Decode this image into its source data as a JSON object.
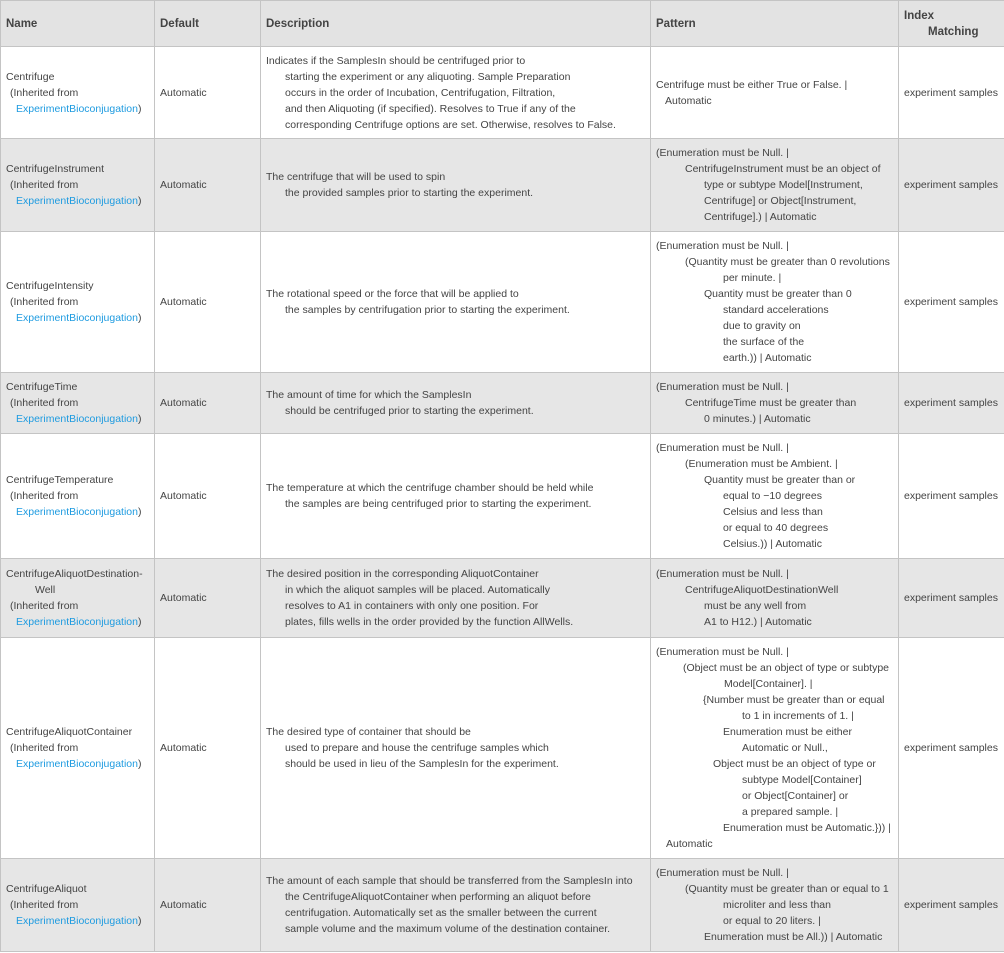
{
  "headers": {
    "name": "Name",
    "default": "Default",
    "description": "Description",
    "pattern": "Pattern",
    "index1": "Index",
    "index2": "Matching"
  },
  "inherited_prefix": "(Inherited from",
  "inherited_suffix": ")",
  "link_color": "#1e9be0",
  "rows": [
    {
      "name": [
        "Centrifuge"
      ],
      "link": "ExperimentBioconjugation",
      "default": "Automatic",
      "description": [
        "Indicates if the SamplesIn should be centrifuged prior to",
        "starting the experiment or any aliquoting. Sample Preparation",
        "occurs in the order of Incubation, Centrifugation, Filtration,",
        "and then Aliquoting (if specified).  Resolves to True if any of the",
        "corresponding Centrifuge options are set. Otherwise, resolves to False."
      ],
      "pattern": [
        "Centrifuge must be either True or False.  |",
        "Automatic"
      ],
      "index": "experiment samples"
    },
    {
      "name": [
        "CentrifugeInstrument"
      ],
      "link": "ExperimentBioconjugation",
      "default": "Automatic",
      "description": [
        "The centrifuge that will be used to spin",
        "the provided samples prior to starting the experiment."
      ],
      "pattern": [
        "(Enumeration must be Null.  |",
        "CentrifugeInstrument must be an object of",
        "type or subtype Model[Instrument,",
        "Centrifuge] or Object[Instrument,",
        "Centrifuge].) | Automatic"
      ],
      "index": "experiment samples"
    },
    {
      "name": [
        "CentrifugeIntensity"
      ],
      "link": "ExperimentBioconjugation",
      "default": "Automatic",
      "description": [
        "The rotational speed or the force that will be applied to",
        "the samples by centrifugation prior to starting the experiment."
      ],
      "pattern": [
        "(Enumeration must be Null.  |",
        "(Quantity must be greater than 0 revolutions",
        "per minute.  |",
        "Quantity must be greater than 0",
        "standard accelerations",
        "due to gravity on",
        "the surface of the",
        "earth.)) | Automatic"
      ],
      "index": "experiment samples"
    },
    {
      "name": [
        "CentrifugeTime"
      ],
      "link": "ExperimentBioconjugation",
      "default": "Automatic",
      "description": [
        "The amount of time for which the SamplesIn",
        "should be centrifuged prior to starting the experiment."
      ],
      "pattern": [
        "(Enumeration must be Null.  |",
        "CentrifugeTime must be greater than",
        "0 minutes.) | Automatic"
      ],
      "index": "experiment samples"
    },
    {
      "name": [
        "CentrifugeTemperature"
      ],
      "link": "ExperimentBioconjugation",
      "default": "Automatic",
      "description": [
        "The temperature at which the centrifuge chamber should be held while",
        "the samples are being centrifuged prior to starting the experiment."
      ],
      "pattern": [
        "(Enumeration must be Null.  |",
        "(Enumeration must be Ambient.  |",
        "Quantity must be greater than or",
        "equal to −10 degrees",
        "Celsius and less than",
        "or equal to 40 degrees",
        "Celsius.)) | Automatic"
      ],
      "index": "experiment samples"
    },
    {
      "name": [
        "CentrifugeAliquotDestination-",
        "Well"
      ],
      "link": "ExperimentBioconjugation",
      "default": "Automatic",
      "description": [
        "The desired position in the corresponding AliquotContainer",
        "in which the aliquot samples will be placed.  Automatically",
        "resolves to A1 in containers with only one position.  For",
        "plates, fills wells in the order provided by the function AllWells."
      ],
      "pattern": [
        "(Enumeration must be Null.  |",
        "CentrifugeAliquotDestinationWell",
        "must be any well from",
        "A1 to H12.) | Automatic"
      ],
      "index": "experiment samples"
    },
    {
      "name": [
        "CentrifugeAliquotContainer"
      ],
      "link": "ExperimentBioconjugation",
      "default": "Automatic",
      "description": [
        "The desired type of container that should be",
        "used to prepare and house the centrifuge samples which",
        "should be used in lieu of the SamplesIn for the experiment."
      ],
      "pattern": [
        "(Enumeration must be Null.  |",
        "(Object must be an object of type or subtype",
        "Model[Container].  |",
        "{Number must be greater than or equal",
        "to 1 in increments of 1.  |",
        "Enumeration must be either",
        "Automatic or Null.,",
        "Object must be an object of type or",
        "subtype Model[Container]",
        "or Object[Container] or",
        "a prepared sample.  |",
        "Enumeration must be Automatic.})) |",
        "Automatic"
      ],
      "index": "experiment samples"
    },
    {
      "name": [
        "CentrifugeAliquot"
      ],
      "link": "ExperimentBioconjugation",
      "default": "Automatic",
      "description": [
        "The amount of each sample that should be transferred from the SamplesIn into",
        "the CentrifugeAliquotContainer when performing an aliquot before",
        "centrifugation.  Automatically set as the smaller between the current",
        "sample volume and the maximum volume of the destination container."
      ],
      "pattern": [
        "(Enumeration must be Null.  |",
        "(Quantity must be greater than or equal to 1",
        "microliter and less than",
        "or equal to 20 liters.  |",
        "Enumeration must be All.)) | Automatic"
      ],
      "index": "experiment samples"
    }
  ]
}
